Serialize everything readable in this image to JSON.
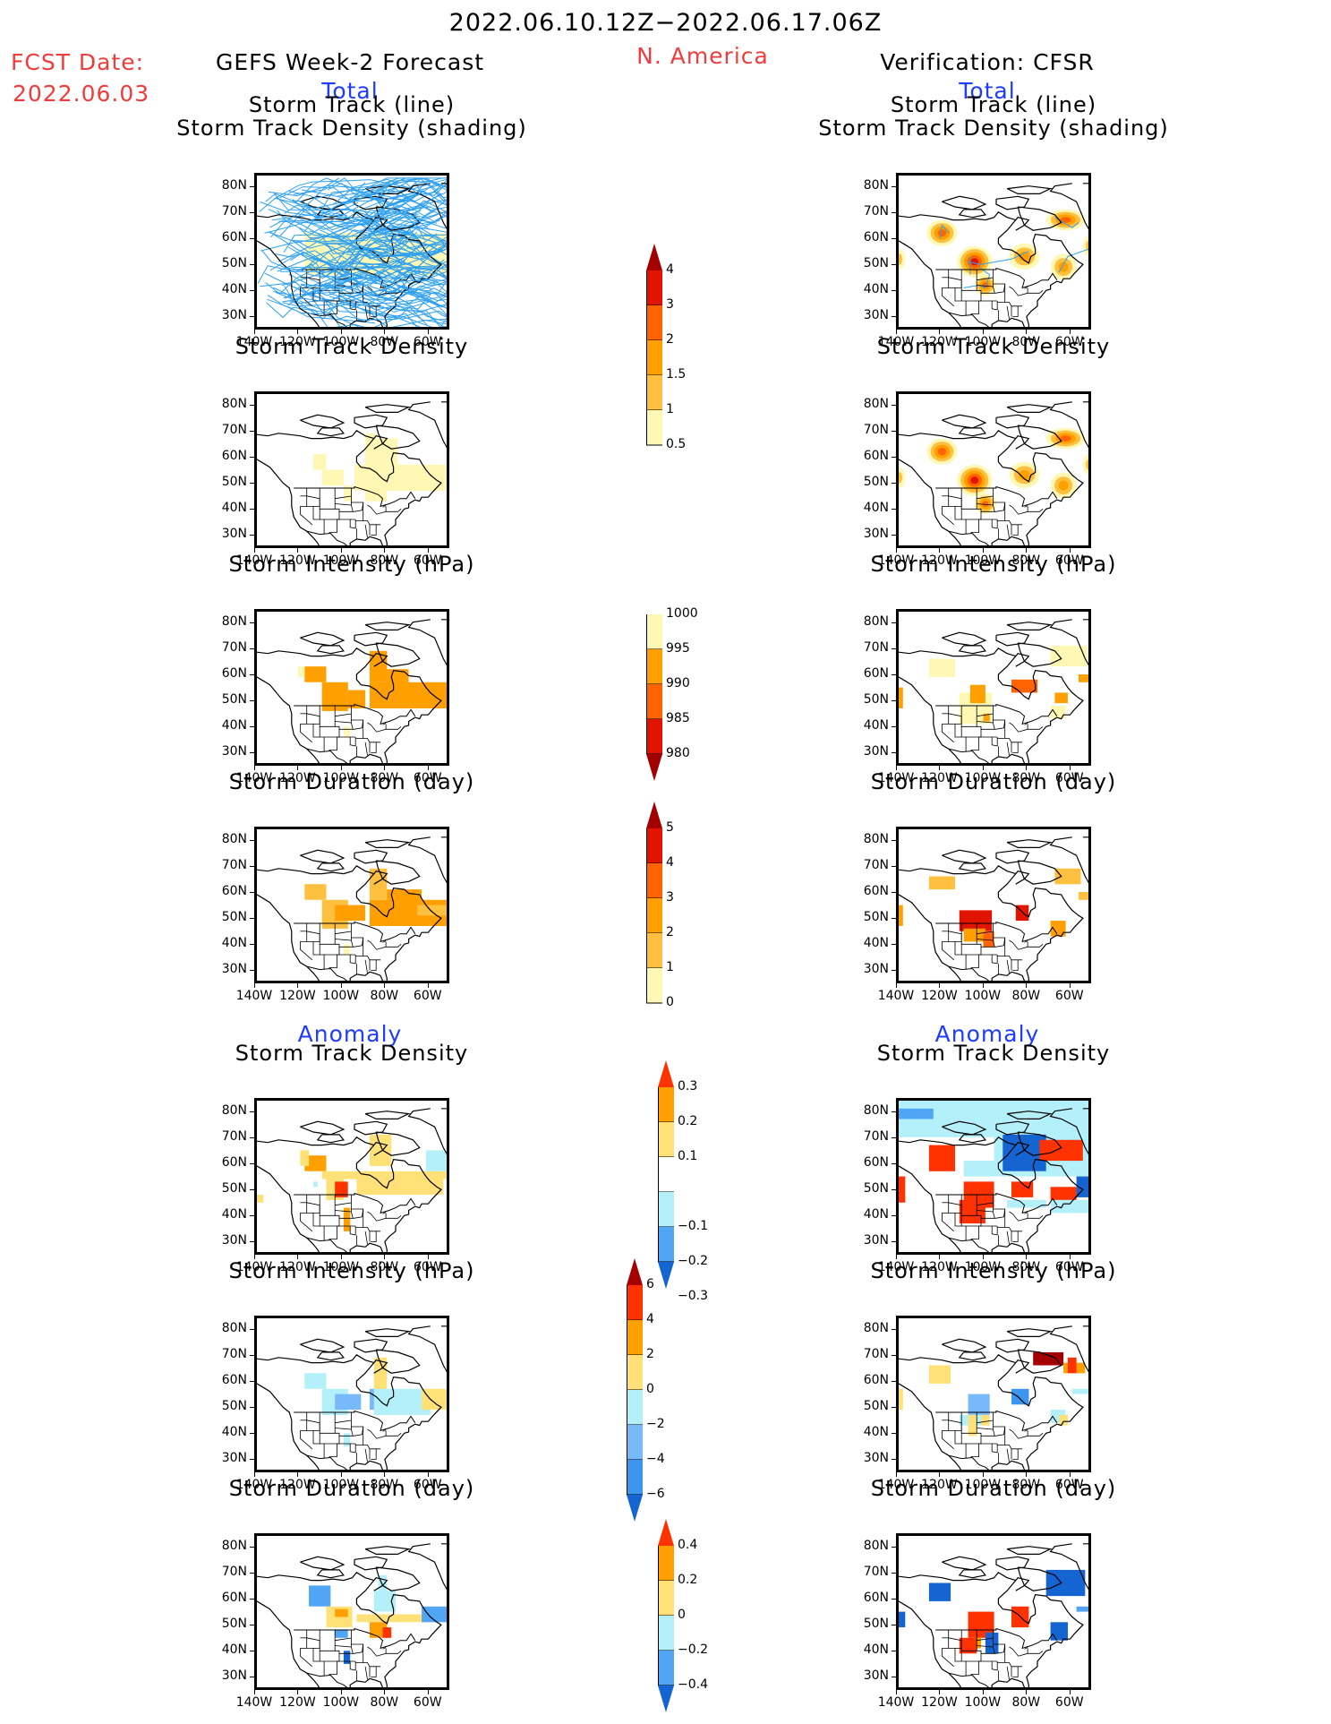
{
  "header": {
    "period": "2022.06.10.12Z−2022.06.17.06Z",
    "region": "N. America",
    "fcst_label": "FCST Date:",
    "fcst_date": "2022.06.03",
    "left_title": "GEFS Week-2 Forecast",
    "right_title": "Verification: CFSR",
    "total_label": "Total",
    "anomaly_label": "Anomaly"
  },
  "axes": {
    "lat_ticks": [
      "80N",
      "70N",
      "60N",
      "50N",
      "40N",
      "30N"
    ],
    "lon_ticks": [
      "140W",
      "120W",
      "100W",
      "80W",
      "60W"
    ]
  },
  "colors": {
    "track_line": "#2ea0f0",
    "total": [
      "#fff8b4",
      "#ffc040",
      "#ffa000",
      "#ff6400",
      "#e11400",
      "#a50000"
    ],
    "intensity": [
      "#fff8b4",
      "#ffa000",
      "#ff6400",
      "#e11400",
      "#a50000"
    ],
    "anomaly": [
      "#1464d2",
      "#50a5f5",
      "#b4f0fa",
      "#ffffff",
      "#ffe178",
      "#ffa000",
      "#ff3200"
    ],
    "anomaly_int": [
      "#1464d2",
      "#3c96f0",
      "#78b9fa",
      "#b4f0fa",
      "#ffe178",
      "#ffa000",
      "#ff3200",
      "#a50000"
    ]
  },
  "chart_data": [
    {
      "type": "heatmap",
      "section": "Total",
      "panels_left": [
        "Storm Track (line)\nStorm Track Density (shading)",
        "Storm Track Density",
        "Storm Intensity (hPa)",
        "Storm Duration (day)"
      ],
      "panels_right": [
        "Storm Track (line)\nStorm Track Density (shading)",
        "Storm Track Density",
        "Storm Intensity (hPa)",
        "Storm Duration (day)"
      ],
      "colorbars": [
        {
          "name": "Storm Track Density",
          "levels": [
            "0.5",
            "1",
            "1.5",
            "2",
            "3",
            "4"
          ],
          "extend": "max"
        },
        {
          "name": "Storm Intensity (hPa)",
          "levels": [
            "1000",
            "995",
            "990",
            "985",
            "980"
          ],
          "extend": "min"
        },
        {
          "name": "Storm Duration (day)",
          "levels": [
            "0",
            "1",
            "2",
            "3",
            "4",
            "5"
          ],
          "extend": "max"
        }
      ],
      "xlim": [
        "140W",
        "50W"
      ],
      "ylim": [
        "25N",
        "85N"
      ]
    },
    {
      "type": "heatmap",
      "section": "Anomaly",
      "panels_left": [
        "Storm Track Density",
        "Storm Intensity (hPa)",
        "Storm Duration (day)"
      ],
      "panels_right": [
        "Storm Track Density",
        "Storm Intensity (hPa)",
        "Storm Duration (day)"
      ],
      "colorbars": [
        {
          "name": "Storm Track Density Anomaly",
          "levels": [
            "0.3",
            "0.2",
            "0.1",
            "−0.1",
            "−0.2",
            "−0.3"
          ],
          "extend": "both"
        },
        {
          "name": "Storm Intensity Anomaly (hPa)",
          "levels": [
            "6",
            "4",
            "2",
            "0",
            "−2",
            "−4",
            "−6"
          ],
          "extend": "both"
        },
        {
          "name": "Storm Duration Anomaly (day)",
          "levels": [
            "0.4",
            "0.2",
            "0",
            "−0.2",
            "−0.4"
          ],
          "extend": "both"
        }
      ],
      "xlim": [
        "140W",
        "50W"
      ],
      "ylim": [
        "25N",
        "85N"
      ]
    }
  ],
  "panels": {
    "row_titles": [
      "Storm Track (line)",
      "Storm Track Density (shading)",
      "Storm Track Density",
      "Storm Intensity (hPa)",
      "Storm Duration (day)"
    ]
  }
}
